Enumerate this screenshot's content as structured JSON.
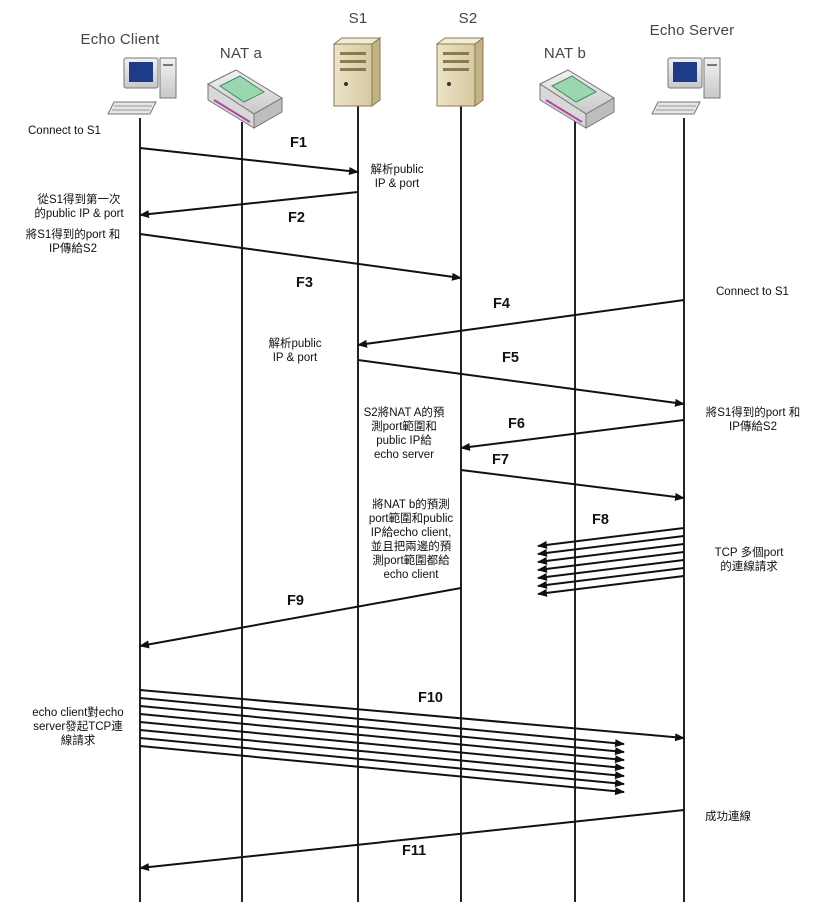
{
  "participants": [
    {
      "name": "Echo Client",
      "icon": "computer-icon"
    },
    {
      "name": "NAT a",
      "icon": "router-icon"
    },
    {
      "name": "S1",
      "icon": "server-icon"
    },
    {
      "name": "S2",
      "icon": "server-icon"
    },
    {
      "name": "NAT b",
      "icon": "router-icon"
    },
    {
      "name": "Echo Server",
      "icon": "computer-icon"
    }
  ],
  "flows": {
    "f1": "F1",
    "f2": "F2",
    "f3": "F3",
    "f4": "F4",
    "f5": "F5",
    "f6": "F6",
    "f7": "F7",
    "f8": "F8",
    "f9": "F9",
    "f10": "F10",
    "f11": "F11"
  },
  "notes": {
    "client_connect": "Connect to S1",
    "s1_parse_1": "解析public\nIP & port",
    "client_get_ip": "從S1得到第一次\n的public IP & port",
    "client_send_s2": "將S1得到的port 和\nIP傳給S2",
    "server_connect": "Connect to S1",
    "s1_parse_2": "解析public\nIP & port",
    "server_send_s2": "將S1得到的port 和\nIP傳給S2",
    "s2_to_server": "S2將NAT A的預\n測port範圍和\npublic IP給\necho server",
    "s2_to_client": "將NAT b的預測\nport範圍和public\nIP給echo client,\n並且把兩邊的預\n測port範圍都給\necho client",
    "server_tcp": "TCP 多個port\n的連線請求",
    "client_tcp": "echo client對echo\nserver發起TCP連\n線請求",
    "success": "成功連線"
  }
}
